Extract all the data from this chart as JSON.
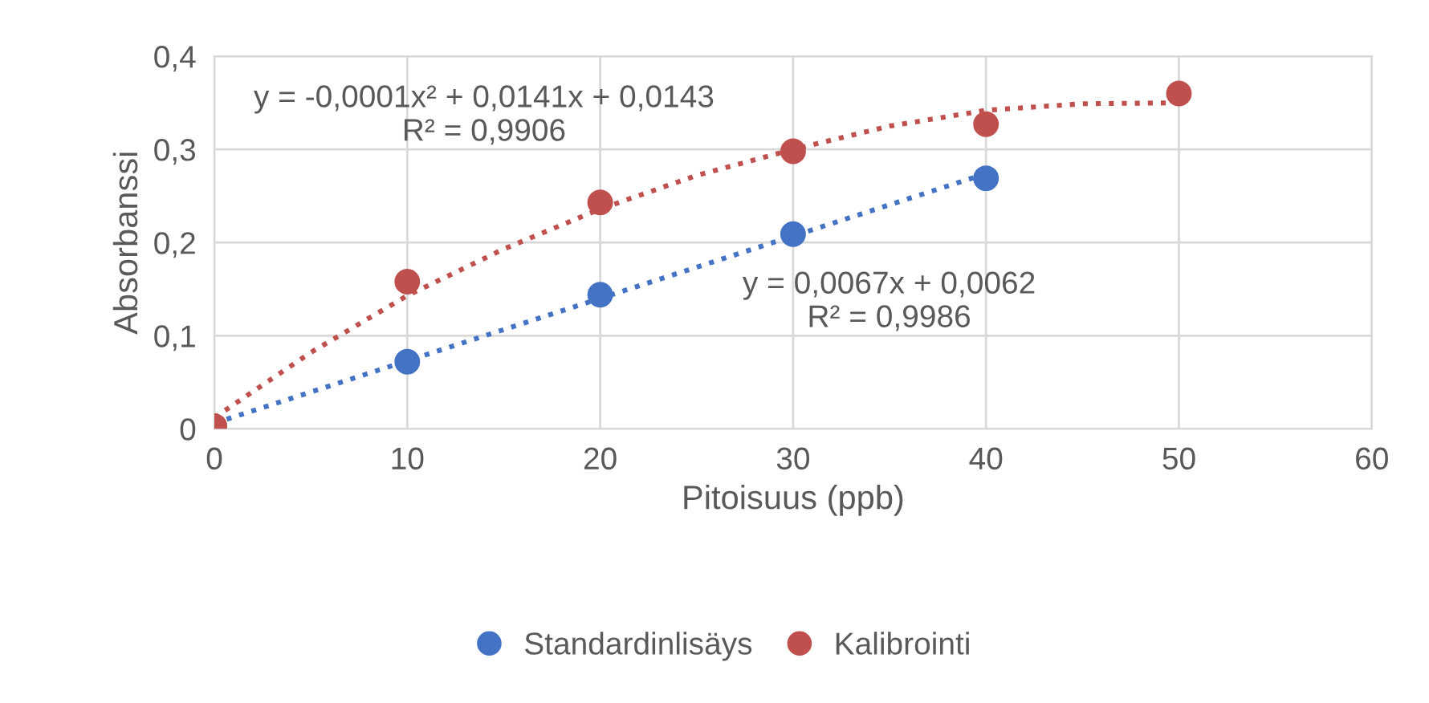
{
  "chart_data": {
    "type": "scatter",
    "xlabel": "Pitoisuus (ppb)",
    "ylabel": "Absorbanssi",
    "xlim": [
      0,
      60
    ],
    "xticks": [
      0,
      10,
      20,
      30,
      40,
      50,
      60
    ],
    "ylim": [
      0,
      0.4
    ],
    "yticks": [
      0,
      {
        "value": 0.1,
        "label": "0,1"
      },
      {
        "value": 0.2,
        "label": "0,2"
      },
      {
        "value": 0.3,
        "label": "0,3"
      },
      {
        "value": 0.4,
        "label": "0,4"
      }
    ],
    "grid": true,
    "legend": "bottom",
    "marker": "circle",
    "series": [
      {
        "name": "Standardinlisäys",
        "color": "#4472c4",
        "x": [
          10,
          20,
          30,
          40
        ],
        "values": [
          0.072,
          0.144,
          0.209,
          0.269
        ]
      },
      {
        "name": "Kalibrointi",
        "color": "#c0504d",
        "x": [
          0,
          10,
          20,
          30,
          40,
          50
        ],
        "values": [
          0.003,
          0.158,
          0.243,
          0.298,
          0.327,
          0.36
        ]
      },
      {
        "type": "line",
        "line_style": "dotted",
        "marker": "none",
        "color": "#4472c4",
        "x": [
          0,
          40
        ],
        "values": [
          0.006,
          0.274
        ]
      },
      {
        "type": "line",
        "line_style": "dotted",
        "marker": "none",
        "color": "#c0504d",
        "x": [
          0,
          5,
          10,
          15,
          20,
          25,
          30,
          35,
          40,
          45,
          50
        ],
        "values": [
          0.012,
          0.082,
          0.143,
          0.193,
          0.236,
          0.272,
          0.3,
          0.325,
          0.342,
          0.349,
          0.35
        ]
      }
    ],
    "annotations": [
      "y = -0,0001x² + 0,0141x + 0,0143\nR² = 0,9906",
      "y = 0,0067x + 0,0062\nR² = 0,9986"
    ]
  }
}
